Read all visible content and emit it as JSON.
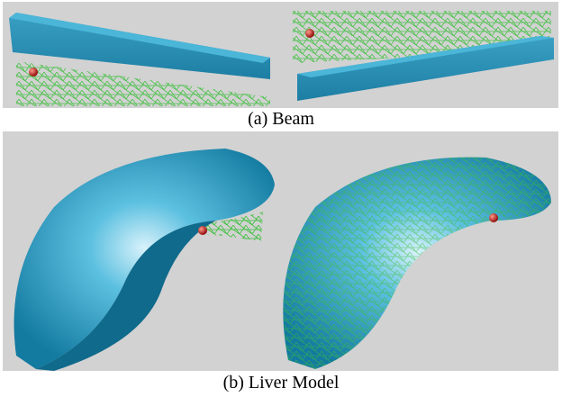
{
  "figure": {
    "panels": [
      {
        "caption": "(a) Beam"
      },
      {
        "caption": "(b) Liver Model"
      }
    ]
  }
}
